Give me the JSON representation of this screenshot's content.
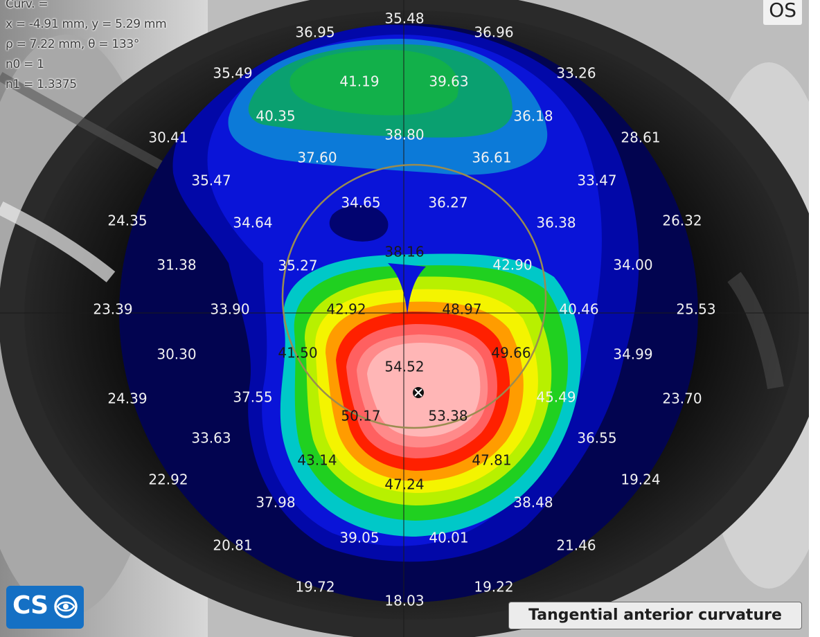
{
  "info": {
    "curv": "Curv. =",
    "xy": "x = -4.91 mm, y = 5.29 mm",
    "rho_theta": "ρ = 7.22 mm, θ = 133°",
    "n0": "n0 = 1",
    "n1": "n1 = 1.3375"
  },
  "eye_label": "OS",
  "map_title": "Tangential anterior curvature",
  "logo_text": "CS",
  "icons": {
    "logo": "cso-eye-logo",
    "apex": "apex-marker-icon"
  },
  "colors": {
    "outer_dark_blue": "#020450",
    "blue": "#0a14d8",
    "green": "#10b040",
    "yellow": "#f0f000",
    "orange": "#ff9800",
    "red": "#ff1800",
    "pink": "#ffb0b0",
    "pupil_ring": "#9a8c50"
  },
  "curvature_labels": [
    "35.48",
    "36.95",
    "36.96",
    "35.49",
    "41.19",
    "39.63",
    "33.26",
    "40.35",
    "36.18",
    "30.41",
    "38.80",
    "28.61",
    "37.60",
    "36.61",
    "35.47",
    "33.47",
    "24.35",
    "34.65",
    "36.27",
    "26.32",
    "34.64",
    "36.38",
    "38.16",
    "31.38",
    "35.27",
    "42.90",
    "34.00",
    "23.39",
    "33.90",
    "42.92",
    "48.97",
    "40.46",
    "25.53",
    "30.30",
    "41.50",
    "49.66",
    "34.99",
    "54.52",
    "24.39",
    "37.55",
    "45.49",
    "23.70",
    "50.17",
    "53.38",
    "33.63",
    "36.55",
    "43.14",
    "47.81",
    "22.92",
    "47.24",
    "19.24",
    "37.98",
    "38.48",
    "39.05",
    "40.01",
    "20.81",
    "21.46",
    "19.72",
    "19.22",
    "18.03"
  ]
}
